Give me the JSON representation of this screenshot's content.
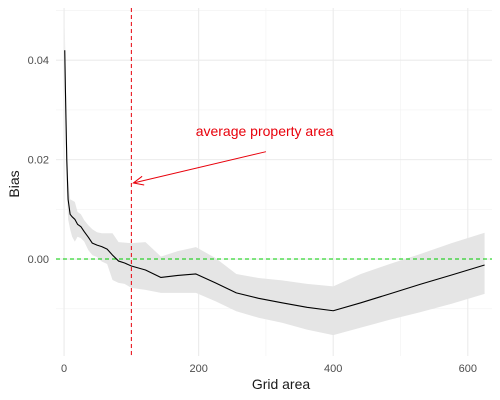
{
  "chart_data": {
    "type": "line",
    "title": "",
    "xlabel": "Grid area",
    "ylabel": "Bias",
    "xlim": [
      -12,
      636
    ],
    "ylim": [
      -0.0195,
      0.0505
    ],
    "x_ticks": [
      0,
      200,
      400,
      600
    ],
    "x_tick_labels": [
      "0",
      "200",
      "400",
      "600"
    ],
    "y_ticks": [
      0.0,
      0.02,
      0.04
    ],
    "y_tick_labels": [
      "0.00",
      "0.02",
      "0.04"
    ],
    "grid": true,
    "legend": "none",
    "series": [
      {
        "x": [
          1,
          2,
          4,
          6,
          9,
          12,
          16,
          20,
          25,
          30,
          36,
          42,
          49,
          56,
          64,
          72,
          81,
          90,
          100,
          121,
          144,
          169,
          196,
          225,
          256,
          289,
          324,
          361,
          400,
          441,
          484,
          529,
          576,
          625
        ],
        "y": [
          0.042,
          0.034,
          0.02,
          0.012,
          0.009,
          0.0085,
          0.008,
          0.007,
          0.0065,
          0.0055,
          0.0044,
          0.0032,
          0.0028,
          0.0025,
          0.002,
          0.0008,
          -0.0004,
          -0.0008,
          -0.0014,
          -0.0022,
          -0.0037,
          -0.0033,
          -0.003,
          -0.0048,
          -0.0068,
          -0.0079,
          -0.0088,
          -0.0097,
          -0.0104,
          -0.0088,
          -0.007,
          -0.0051,
          -0.0032,
          -0.0012
        ],
        "lower": [
          0.035,
          0.027,
          0.014,
          0.008,
          0.006,
          0.0045,
          0.0035,
          0.0045,
          0.0042,
          0.0035,
          0.0018,
          0.0008,
          0.0004,
          -0.0005,
          -0.001,
          -0.0042,
          -0.0048,
          -0.005,
          -0.0058,
          -0.0062,
          -0.0068,
          -0.0068,
          -0.0068,
          -0.0085,
          -0.0105,
          -0.0118,
          -0.0128,
          -0.0142,
          -0.0153,
          -0.0138,
          -0.0122,
          -0.0107,
          -0.009,
          -0.007
        ],
        "upper": [
          0.047,
          0.04,
          0.026,
          0.016,
          0.012,
          0.0118,
          0.0115,
          0.0095,
          0.009,
          0.0078,
          0.0068,
          0.006,
          0.0054,
          0.0052,
          0.0052,
          0.0052,
          0.0034,
          0.0033,
          0.0032,
          0.0034,
          0.0005,
          0.0016,
          0.0024,
          0.0002,
          -0.003,
          -0.0038,
          -0.0043,
          -0.005,
          -0.0055,
          -0.003,
          -0.001,
          0.001,
          0.0032,
          0.0053
        ],
        "line_color": "#000000",
        "band_color": "#e5e5e5"
      }
    ],
    "reference_lines": [
      {
        "orientation": "vertical",
        "value": 100,
        "color": "#e8000b",
        "style": "dashed"
      },
      {
        "orientation": "horizontal",
        "value": 0,
        "color": "#00cc00",
        "style": "dashed"
      }
    ],
    "annotations": [
      {
        "text": "average property area",
        "text_x": 298,
        "text_y": 0.0248,
        "arrow_from": [
          300,
          0.0216
        ],
        "arrow_to": [
          103,
          0.0153
        ],
        "color": "#e8000b"
      }
    ]
  }
}
